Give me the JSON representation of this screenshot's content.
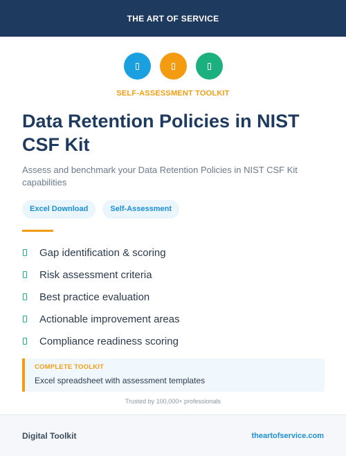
{
  "header": {
    "brand": "THE ART OF SERVICE"
  },
  "icons": [
    {
      "name": "document-icon",
      "color": "#1a9fe0"
    },
    {
      "name": "document-icon",
      "color": "#f39c12"
    },
    {
      "name": "document-icon",
      "color": "#1bb07d"
    }
  ],
  "eyebrow": "SELF-ASSESSMENT TOOLKIT",
  "title": "Data Retention Policies in NIST CSF Kit",
  "subtitle": "Assess and benchmark your Data Retention Policies in NIST CSF Kit capabilities",
  "tags": [
    "Excel Download",
    "Self-Assessment"
  ],
  "features": [
    "Gap identification & scoring",
    "Risk assessment criteria",
    "Best practice evaluation",
    "Actionable improvement areas",
    "Compliance readiness scoring"
  ],
  "toolkit": {
    "label": "COMPLETE TOOLKIT",
    "description": "Excel spreadsheet with assessment templates"
  },
  "trusted": "Trusted by 100,000+ professionals",
  "footer": {
    "left": "Digital Toolkit",
    "right": "theartofservice.com"
  }
}
